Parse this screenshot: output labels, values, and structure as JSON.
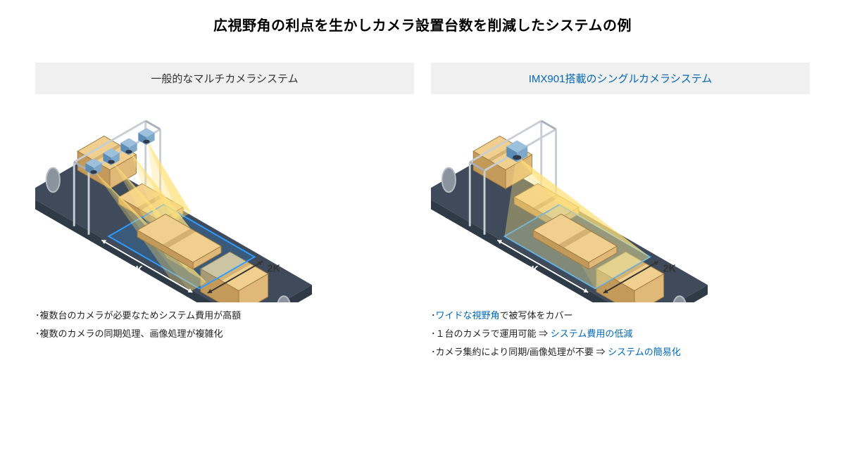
{
  "title": "広視野角の利点を生かしカメラ設置台数を削減したシステムの例",
  "left": {
    "header": "一般的なマルチカメラシステム",
    "label_h": "8K",
    "label_v": "2K",
    "cameras": 4,
    "bullets": [
      "･複数台のカメラが必要なためシステム費用が高額",
      "･複数のカメラの同期処理、画像処理が複雑化"
    ]
  },
  "right": {
    "header": "IMX901搭載のシングルカメラシステム",
    "label_h": "8K",
    "label_v": "2K",
    "cameras": 1,
    "bullets": [
      {
        "pre": "･",
        "blue": "ワイドな視野角",
        "post": "で被写体をカバー"
      },
      {
        "pre": "･１台のカメラで運用可能 ⇒ ",
        "blue": "システム費用の低減",
        "post": ""
      },
      {
        "pre": "･カメラ集約により同期/画像処理が不要 ⇒ ",
        "blue": "システムの簡易化",
        "post": ""
      }
    ]
  },
  "palette": {
    "belt_dark": "#3f4b5b",
    "belt_edge": "#2f3a47",
    "roller": "#8a939e",
    "roller_light": "#b8bec6",
    "box_top": "#f0cf8f",
    "box_left": "#c49a5a",
    "box_right": "#e0b878",
    "box_stroke": "#9f7a42",
    "frame": "#c9ced4",
    "frame_dark": "#a8b0b9",
    "cam_top": "#9dc0dc",
    "cam_left": "#5a8cb4",
    "cam_right": "#7ea8c9",
    "cam_lens": "#2f394a",
    "cone": "#ffe27a",
    "cone_opacity": 0.55,
    "highlight": "#2d9cff",
    "arrow": "#ffffff",
    "arrow_dark": "#333333"
  },
  "geom": {
    "ax": 0.866,
    "ay": 0.5
  }
}
